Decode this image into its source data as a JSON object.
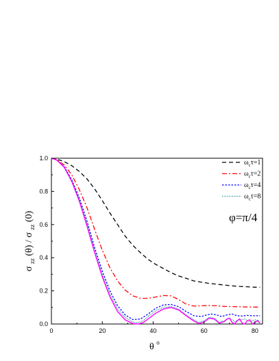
{
  "chart_data": {
    "type": "line",
    "xlabel": {
      "main": "θ",
      "superscript": "o"
    },
    "ylabel": {
      "num_main": "σ",
      "num_sub": "zz",
      "num_arg": "(θ)",
      "sep": " / ",
      "den_main": "σ",
      "den_sub": "zz",
      "den_arg": "(0)"
    },
    "xlim": [
      0,
      83
    ],
    "ylim": [
      0,
      1.0
    ],
    "x_ticks": [
      "0",
      "20",
      "40",
      "60",
      "80"
    ],
    "x_tick_values": [
      0,
      20,
      40,
      60,
      80
    ],
    "y_ticks": [
      "0.0",
      "0.2",
      "0.4",
      "0.6",
      "0.8",
      "1.0"
    ],
    "y_tick_values": [
      0.0,
      0.2,
      0.4,
      0.6,
      0.8,
      1.0
    ],
    "grid": false,
    "legend_placement": "top-right",
    "annotation": "φ=π/4",
    "series": [
      {
        "name": "ωcτ=1",
        "legend": {
          "pre": "ω",
          "sub": "c",
          "post": "τ=1"
        },
        "color": "#000000",
        "dash": "dash",
        "x": [
          0,
          2,
          5,
          8,
          11,
          14,
          17,
          20,
          23,
          26,
          29,
          32,
          35,
          38,
          41,
          44,
          47,
          50,
          53,
          56,
          59,
          62,
          65,
          68,
          71,
          74,
          77,
          80,
          82
        ],
        "y": [
          1.0,
          0.995,
          0.98,
          0.955,
          0.92,
          0.875,
          0.815,
          0.745,
          0.67,
          0.6,
          0.53,
          0.475,
          0.43,
          0.39,
          0.36,
          0.335,
          0.31,
          0.29,
          0.275,
          0.26,
          0.252,
          0.245,
          0.24,
          0.235,
          0.23,
          0.227,
          0.225,
          0.222,
          0.222
        ]
      },
      {
        "name": "ωcτ=2",
        "legend": {
          "pre": "ω",
          "sub": "c",
          "post": "τ=2"
        },
        "color": "#ff0000",
        "dash": "dashdot",
        "x": [
          0,
          2,
          5,
          8,
          11,
          14,
          17,
          20,
          23,
          26,
          29,
          32,
          35,
          38,
          41,
          44,
          47,
          50,
          53,
          56,
          59,
          62,
          65,
          68,
          71,
          74,
          77,
          80,
          82
        ],
        "y": [
          1.0,
          0.993,
          0.96,
          0.9,
          0.81,
          0.7,
          0.57,
          0.445,
          0.34,
          0.26,
          0.205,
          0.17,
          0.155,
          0.155,
          0.163,
          0.172,
          0.17,
          0.148,
          0.12,
          0.108,
          0.11,
          0.112,
          0.11,
          0.106,
          0.105,
          0.104,
          0.103,
          0.102,
          0.102
        ]
      },
      {
        "name": "ωcτ=4",
        "legend": {
          "pre": "ω",
          "sub": "c",
          "post": "τ=4"
        },
        "color": "#0000ff",
        "dash": "dot",
        "x": [
          0,
          2,
          5,
          8,
          11,
          14,
          17,
          20,
          23,
          26,
          29,
          32,
          35,
          38,
          41,
          44,
          47,
          50,
          53,
          56,
          59,
          61,
          63,
          65,
          67,
          69,
          71,
          73,
          75,
          77,
          79,
          81,
          82
        ],
        "y": [
          1.0,
          0.99,
          0.95,
          0.87,
          0.76,
          0.62,
          0.46,
          0.32,
          0.2,
          0.11,
          0.055,
          0.027,
          0.03,
          0.06,
          0.095,
          0.115,
          0.118,
          0.105,
          0.075,
          0.05,
          0.045,
          0.055,
          0.06,
          0.055,
          0.045,
          0.055,
          0.06,
          0.05,
          0.048,
          0.052,
          0.05,
          0.05,
          0.05
        ]
      },
      {
        "name": "ωcτ=8",
        "legend": {
          "pre": "ω",
          "sub": "c",
          "post": "τ=8"
        },
        "color": "#008080",
        "dash": "fine-dot",
        "x": [
          0,
          2,
          5,
          8,
          11,
          14,
          17,
          20,
          23,
          26,
          29,
          32,
          34,
          36,
          38,
          41,
          44,
          47,
          50,
          53,
          56,
          58,
          60,
          62,
          64,
          66,
          68,
          70,
          72,
          74,
          76,
          78,
          80,
          82
        ],
        "y": [
          1.0,
          0.99,
          0.948,
          0.865,
          0.75,
          0.605,
          0.445,
          0.3,
          0.18,
          0.09,
          0.04,
          0.012,
          0.008,
          0.02,
          0.045,
          0.08,
          0.1,
          0.105,
          0.09,
          0.055,
          0.025,
          0.01,
          0.02,
          0.04,
          0.035,
          0.012,
          0.02,
          0.035,
          0.015,
          0.025,
          0.03,
          0.012,
          0.025,
          0.02
        ]
      },
      {
        "name": "",
        "color": "#ff00ff",
        "dash": "solid",
        "x": [
          0,
          2,
          5,
          8,
          11,
          14,
          17,
          20,
          23,
          26,
          29,
          32,
          34,
          36,
          38,
          41,
          44,
          47,
          50,
          53,
          56,
          58,
          60,
          62,
          64,
          66,
          68,
          69,
          70,
          71,
          72,
          73,
          74,
          75,
          76,
          77,
          78,
          79,
          80,
          81,
          82
        ],
        "y": [
          1.0,
          0.99,
          0.946,
          0.86,
          0.74,
          0.59,
          0.43,
          0.285,
          0.165,
          0.075,
          0.025,
          0.003,
          0.0,
          0.008,
          0.03,
          0.065,
          0.09,
          0.1,
          0.085,
          0.05,
          0.018,
          0.003,
          0.012,
          0.035,
          0.03,
          0.005,
          0.015,
          0.03,
          0.035,
          0.01,
          0.0,
          0.02,
          0.03,
          0.005,
          0.0,
          0.02,
          0.025,
          0.0,
          0.01,
          0.02,
          0.005
        ]
      }
    ]
  }
}
